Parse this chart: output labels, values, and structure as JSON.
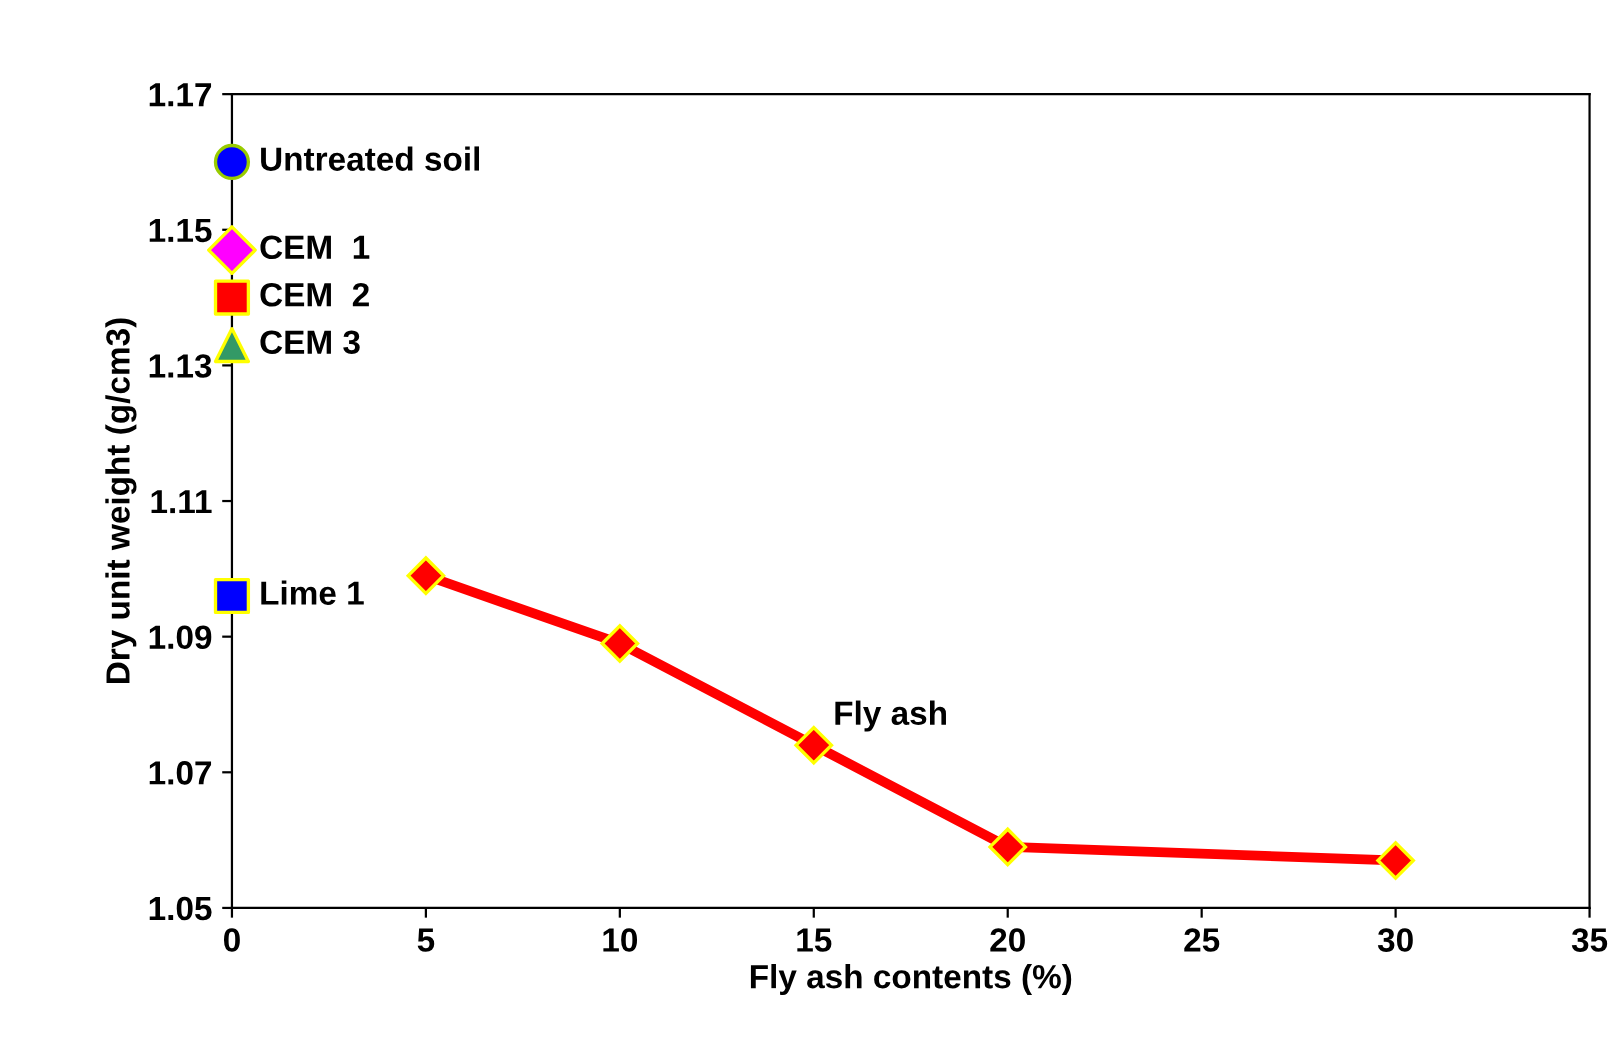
{
  "chart_data": {
    "type": "scatter",
    "xlabel": "Fly ash contents (%)",
    "ylabel": "Dry unit weight (g/cm3)",
    "xlim": [
      0,
      35
    ],
    "xticks": [
      0,
      5,
      10,
      15,
      20,
      25,
      30,
      35
    ],
    "ylim": [
      1.05,
      1.17
    ],
    "yticks": [
      1.05,
      1.07,
      1.09,
      1.11,
      1.13,
      1.15,
      1.17
    ],
    "grid": false,
    "legend": false,
    "series": [
      {
        "name": "Untreated soil",
        "marker": "circle",
        "color": "#0000ff",
        "x": [
          0
        ],
        "values": [
          1.16
        ]
      },
      {
        "name": "CEM  1",
        "marker": "diamond",
        "color": "#ff00ff",
        "x": [
          0
        ],
        "values": [
          1.147
        ]
      },
      {
        "name": "CEM  2",
        "marker": "square",
        "color": "#ff0000",
        "x": [
          0
        ],
        "values": [
          1.14
        ]
      },
      {
        "name": "CEM 3",
        "marker": "triangle",
        "color": "#339966",
        "x": [
          0
        ],
        "values": [
          1.133
        ]
      },
      {
        "name": "Lime 1",
        "marker": "square",
        "color": "#0000ff",
        "x": [
          0
        ],
        "values": [
          1.096
        ]
      },
      {
        "name": "Fly ash",
        "type": "line",
        "marker": "diamond",
        "color": "#ff0000",
        "x": [
          5,
          10,
          15,
          20,
          30
        ],
        "values": [
          1.099,
          1.089,
          1.074,
          1.059,
          1.057
        ]
      }
    ]
  }
}
